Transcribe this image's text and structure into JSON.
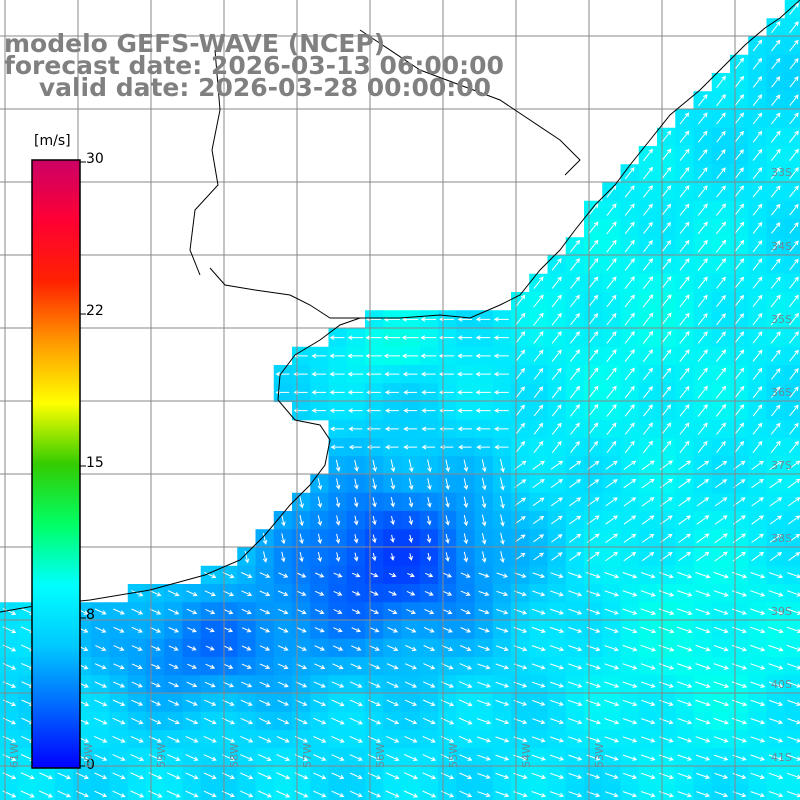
{
  "title": {
    "line1": "modelo GEFS-WAVE (NCEP)",
    "line2": "forecast date: 2026-03-13 06:00:00",
    "line3": "    valid date: 2026-03-28 00:00:00"
  },
  "colorbar": {
    "unit": "[m/s]",
    "ticks": [
      "30",
      "22",
      "15",
      "8",
      "0"
    ],
    "tick_values": [
      30,
      22,
      15,
      8,
      0
    ],
    "colors": [
      "#0000ff",
      "#0066ff",
      "#00c8ff",
      "#00ffff",
      "#00ff66",
      "#33cc00",
      "#ffff00",
      "#ff9900",
      "#ff2200",
      "#ff0033",
      "#cc0066"
    ]
  },
  "map": {
    "lat_labels": [
      "33S",
      "34S",
      "35S",
      "36S",
      "37S",
      "38S",
      "39S",
      "40S",
      "41S"
    ],
    "lon_labels": [
      "61W",
      "60W",
      "59W",
      "58W",
      "57W",
      "56W",
      "55W",
      "54W",
      "53W"
    ],
    "colors": {
      "land": "#ffffff",
      "coast": "#000000",
      "grid": "#888888",
      "arrow": "#ffffff"
    }
  }
}
